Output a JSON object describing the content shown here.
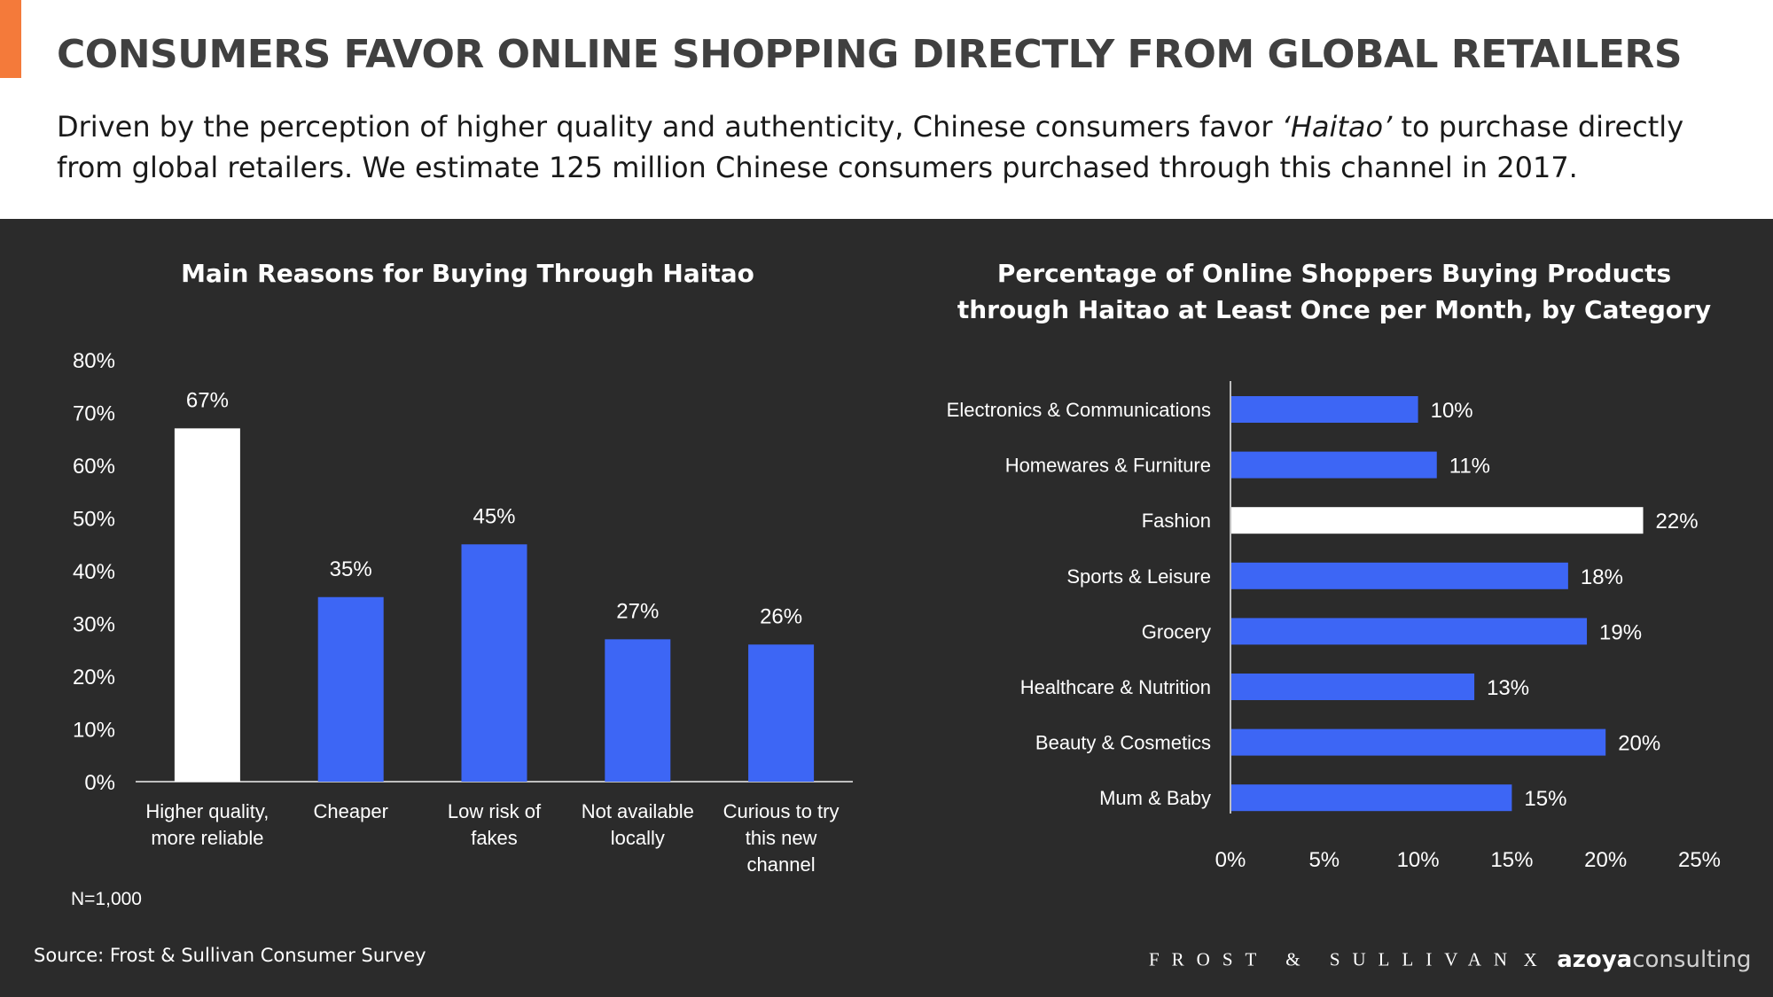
{
  "header": {
    "title": "CONSUMERS FAVOR ONLINE SHOPPING DIRECTLY FROM GLOBAL RETAILERS",
    "subtitle_before": "Driven by the perception of higher quality and authenticity, Chinese consumers favor ",
    "subtitle_em": "‘Haitao’",
    "subtitle_after": " to purchase directly from global retailers. We estimate 125 million Chinese consumers purchased through this channel in 2017."
  },
  "colors": {
    "accent": "#F47A3A",
    "panel_bg": "#2B2B2B",
    "bar_blue": "#3D66F5",
    "bar_highlight": "#FFFFFF",
    "text_light": "#FFFFFF"
  },
  "chart_data": [
    {
      "type": "bar",
      "orientation": "vertical",
      "title": "Main Reasons for Buying Through Haitao",
      "categories": [
        [
          "Higher quality,",
          "more reliable"
        ],
        [
          "Cheaper"
        ],
        [
          "Low risk of",
          "fakes"
        ],
        [
          "Not available",
          "locally"
        ],
        [
          "Curious to try",
          "this new",
          "channel"
        ]
      ],
      "values": [
        67,
        35,
        45,
        27,
        26
      ],
      "data_labels": [
        "67%",
        "35%",
        "45%",
        "27%",
        "26%"
      ],
      "highlight_index": 0,
      "ylim": [
        0,
        80
      ],
      "yticks": [
        "0%",
        "10%",
        "20%",
        "30%",
        "40%",
        "50%",
        "60%",
        "70%",
        "80%"
      ],
      "ytick_values": [
        0,
        10,
        20,
        30,
        40,
        50,
        60,
        70,
        80
      ],
      "note": "N=1,000"
    },
    {
      "type": "bar",
      "orientation": "horizontal",
      "title_lines": [
        "Percentage of Online Shoppers Buying Products",
        "through Haitao at Least Once per Month, by Category"
      ],
      "categories": [
        "Electronics & Communications",
        "Homewares & Furniture",
        "Fashion",
        "Sports & Leisure",
        "Grocery",
        "Healthcare & Nutrition",
        "Beauty & Cosmetics",
        "Mum & Baby"
      ],
      "values": [
        10,
        11,
        22,
        18,
        19,
        13,
        20,
        15
      ],
      "data_labels": [
        "10%",
        "11%",
        "22%",
        "18%",
        "19%",
        "13%",
        "20%",
        "15%"
      ],
      "highlight_index": 2,
      "xlim": [
        0,
        25
      ],
      "xticks": [
        "0%",
        "5%",
        "10%",
        "15%",
        "20%",
        "25%"
      ],
      "xtick_values": [
        0,
        5,
        10,
        15,
        20,
        25
      ]
    }
  ],
  "footer": {
    "source": "Source: Frost & Sullivan Consumer Survey",
    "logo_frost": "FROST & SULLIVAN",
    "logo_x": "X",
    "logo_azoya_bold": "azoya",
    "logo_azoya_light": "consulting"
  }
}
